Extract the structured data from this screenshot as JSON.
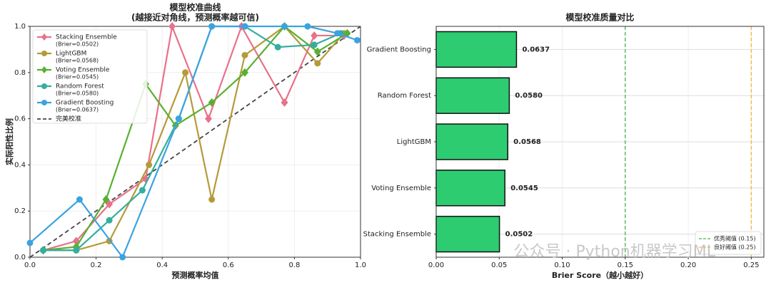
{
  "chart_data": [
    {
      "type": "line",
      "title": "模型校准曲线",
      "subtitle": "(越接近对角线，预测概率越可信)",
      "xlabel": "预测概率均值",
      "ylabel": "实际阳性比例",
      "xlim": [
        0,
        1
      ],
      "ylim": [
        0,
        1
      ],
      "xticks": [
        {
          "value": 0,
          "label": "0.0"
        },
        {
          "value": 0.2,
          "label": "0.2"
        },
        {
          "value": 0.4,
          "label": "0.4"
        },
        {
          "value": 0.6,
          "label": "0.6"
        },
        {
          "value": 0.8,
          "label": "0.8"
        },
        {
          "value": 1,
          "label": "1.0"
        }
      ],
      "yticks": [
        {
          "value": 0,
          "label": "0.0"
        },
        {
          "value": 0.2,
          "label": "0.2"
        },
        {
          "value": 0.4,
          "label": "0.4"
        },
        {
          "value": 0.6,
          "label": "0.6"
        },
        {
          "value": 0.8,
          "label": "0.8"
        },
        {
          "value": 1,
          "label": "1.0"
        }
      ],
      "grid": true,
      "legend": "upper left",
      "series": [
        {
          "name": "Stacking Ensemble",
          "note": "(Brier=0.0502)",
          "color": "#e8718a",
          "marker": "diamond",
          "x": [
            0.04,
            0.14,
            0.24,
            0.35,
            0.43,
            0.54,
            0.64,
            0.77,
            0.86,
            0.95
          ],
          "values": [
            0.03,
            0.07,
            0.23,
            0.34,
            1.0,
            0.6,
            1.0,
            0.67,
            0.96,
            0.96
          ]
        },
        {
          "name": "LightGBM",
          "note": "(Brier=0.0568)",
          "color": "#b59a3a",
          "marker": "circle",
          "x": [
            0.04,
            0.14,
            0.24,
            0.36,
            0.47,
            0.55,
            0.65,
            0.77,
            0.87,
            0.95
          ],
          "values": [
            0.03,
            0.03,
            0.07,
            0.4,
            0.8,
            0.25,
            0.875,
            1.0,
            0.84,
            0.97
          ]
        },
        {
          "name": "Voting Ensemble",
          "note": "(Brier=0.0545)",
          "color": "#58b031",
          "marker": "diamond",
          "x": [
            0.04,
            0.14,
            0.23,
            0.35,
            0.44,
            0.55,
            0.65,
            0.77,
            0.87,
            0.96
          ],
          "values": [
            0.03,
            0.045,
            0.25,
            0.75,
            0.57,
            0.67,
            0.8,
            1.0,
            0.89,
            0.97
          ]
        },
        {
          "name": "Random Forest",
          "note": "(Brier=0.0580)",
          "color": "#34aea0",
          "marker": "circle",
          "x": [
            0.04,
            0.14,
            0.24,
            0.34,
            0.45,
            0.55,
            0.65,
            0.75,
            0.86,
            0.94
          ],
          "values": [
            0.03,
            0.03,
            0.16,
            0.29,
            0.6,
            1.0,
            1.0,
            0.91,
            0.92,
            0.97
          ]
        },
        {
          "name": "Gradient Boosting",
          "note": "(Brier=0.0637)",
          "color": "#3ba3e0",
          "marker": "circle",
          "x": [
            0.0,
            0.15,
            0.28,
            0.45,
            0.55,
            0.65,
            0.77,
            0.84,
            0.93,
            0.99
          ],
          "values": [
            0.062,
            0.25,
            0.0,
            0.6,
            1.0,
            1.0,
            1.0,
            1.0,
            0.97,
            0.94
          ]
        }
      ],
      "reference": {
        "name": "完美校准",
        "color": "#444444",
        "x": [
          0,
          1
        ],
        "values": [
          0,
          1
        ]
      }
    },
    {
      "type": "barh",
      "title": "模型校准质量对比",
      "xlabel": "Brier Score（越小越好）",
      "categories": [
        "Stacking Ensemble",
        "Voting Ensemble",
        "LightGBM",
        "Random Forest",
        "Gradient Boosting"
      ],
      "values": [
        0.0502,
        0.0545,
        0.0568,
        0.058,
        0.0637
      ],
      "value_labels": [
        "0.0502",
        "0.0545",
        "0.0568",
        "0.0580",
        "0.0637"
      ],
      "color": "#2ecc71",
      "edgecolor": "#111111",
      "xlim": [
        0,
        0.26
      ],
      "xticks": [
        {
          "value": 0,
          "label": "0.00"
        },
        {
          "value": 0.05,
          "label": "0.05"
        },
        {
          "value": 0.1,
          "label": "0.10"
        },
        {
          "value": 0.15,
          "label": "0.15"
        },
        {
          "value": 0.2,
          "label": "0.20"
        },
        {
          "value": 0.25,
          "label": "0.25"
        }
      ],
      "grid": true,
      "legend": "lower right",
      "vlines": [
        {
          "value": 0.15,
          "label": "优秀阈值 (0.15)",
          "color": "#4caf50"
        },
        {
          "value": 0.25,
          "label": "良好阈值 (0.25)",
          "color": "#f5b731"
        }
      ]
    }
  ],
  "watermark": "公众号 · Python机器学习ML"
}
